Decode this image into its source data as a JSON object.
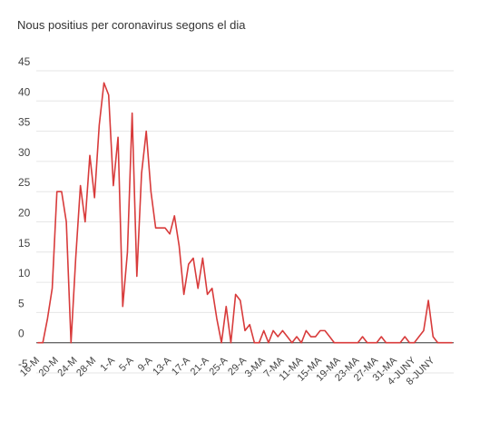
{
  "chart_data": {
    "type": "line",
    "title": "Nous positius per coronavirus segons el dia",
    "xlabel": "",
    "ylabel": "",
    "ylim": [
      -5,
      45
    ],
    "yticks": [
      -5,
      0,
      5,
      10,
      15,
      20,
      25,
      30,
      35,
      40,
      45
    ],
    "grid": true,
    "legend": "none",
    "line_color": "#d83b3b",
    "x_tick_labels": [
      "16-M",
      "20-M",
      "24-M",
      "28-M",
      "1-A",
      "5-A",
      "9-A",
      "13-A",
      "17-A",
      "21-A",
      "25-A",
      "29-A",
      "3-MA",
      "7-MA",
      "11-MA",
      "15-MA",
      "19-MA",
      "23-MA",
      "27-MA",
      "31-MA",
      "4-JUNY",
      "8-JUNY"
    ],
    "series": [
      {
        "values": [
          0,
          0,
          4,
          9,
          25,
          25,
          20,
          0,
          14,
          26,
          20,
          31,
          24,
          36,
          43,
          41,
          26,
          34,
          6,
          15,
          38,
          11,
          28,
          35,
          25,
          19,
          19,
          19,
          18,
          21,
          16,
          8,
          13,
          14,
          9,
          14,
          8,
          9,
          4,
          0,
          6,
          0,
          8,
          7,
          2,
          3,
          0,
          0,
          2,
          0,
          2,
          1,
          2,
          1,
          0,
          1,
          0,
          2,
          1,
          1,
          2,
          2,
          1,
          0,
          0,
          0,
          0,
          0,
          0,
          1,
          0,
          0,
          0,
          1,
          0,
          0,
          0,
          0,
          1,
          0,
          0,
          1,
          2,
          7,
          1,
          0,
          0,
          0,
          0
        ]
      }
    ]
  }
}
